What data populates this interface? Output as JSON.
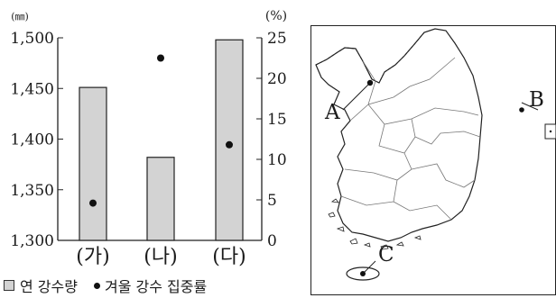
{
  "chart_data": {
    "type": "bar",
    "categories": [
      "(가)",
      "(나)",
      "(다)"
    ],
    "series": [
      {
        "name": "연 강수량",
        "type": "bar",
        "axis": "left",
        "color": "#d3d3d3",
        "values": [
          1451,
          1382,
          1498
        ]
      },
      {
        "name": "겨울 강수 집중률",
        "type": "scatter",
        "axis": "right",
        "color": "#111111",
        "values": [
          4.6,
          22.5,
          11.8
        ]
      }
    ],
    "y_left": {
      "unit": "(㎜)",
      "ticks": [
        "1,300",
        "1,350",
        "1,400",
        "1,450",
        "1,500"
      ],
      "range": [
        1300,
        1500
      ]
    },
    "y_right": {
      "unit": "(%)",
      "ticks": [
        "0",
        "5",
        "10",
        "15",
        "20",
        "25"
      ],
      "range": [
        0,
        25
      ]
    },
    "grid": false,
    "legend_position": "bottom"
  },
  "legend": {
    "bar_label": "연 강수량",
    "dot_label": "겨울 강수 집중률"
  },
  "map": {
    "labels": [
      "A",
      "B",
      "C"
    ]
  }
}
